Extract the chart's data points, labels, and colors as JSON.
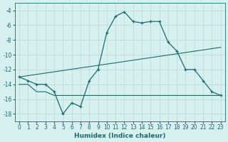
{
  "xlabel": "Humidex (Indice chaleur)",
  "bg_color": "#d6f0ef",
  "grid_color": "#b8d8d8",
  "line_color": "#1a6b6b",
  "xlim": [
    -0.5,
    23.5
  ],
  "ylim": [
    -19,
    -3
  ],
  "yticks": [
    -4,
    -6,
    -8,
    -10,
    -12,
    -14,
    -16,
    -18
  ],
  "xticks": [
    0,
    1,
    2,
    3,
    4,
    5,
    6,
    7,
    8,
    9,
    10,
    11,
    12,
    13,
    14,
    15,
    16,
    17,
    18,
    19,
    20,
    21,
    22,
    23
  ],
  "main_curve": {
    "x": [
      0,
      1,
      2,
      3,
      4,
      5,
      6,
      7,
      8,
      9,
      10,
      11,
      12,
      13,
      14,
      15,
      16,
      17,
      18,
      19,
      20,
      21,
      22,
      23
    ],
    "y": [
      -13,
      -13.5,
      -14,
      -14,
      -15,
      -18,
      -16.5,
      -17,
      -13.5,
      -12,
      -7,
      -4.8,
      -4.2,
      -5.5,
      -5.7,
      -5.5,
      -5.5,
      -8.3,
      -9.5,
      -12,
      -12,
      -13.5,
      -15,
      -15.5
    ]
  },
  "upper_trend": {
    "x": [
      0,
      23
    ],
    "y": [
      -13,
      -9.0
    ]
  },
  "lower_flat": {
    "x": [
      0,
      1,
      2,
      3,
      4,
      5,
      6,
      7,
      8,
      9,
      10,
      11,
      12,
      13,
      14,
      15,
      16,
      17,
      18,
      19,
      20,
      21,
      22,
      23
    ],
    "y": [
      -14,
      -14,
      -15,
      -15,
      -15.5,
      -15.5,
      -15.5,
      -15.5,
      -15.5,
      -15.5,
      -15.5,
      -15.5,
      -15.5,
      -15.5,
      -15.5,
      -15.5,
      -15.5,
      -15.5,
      -15.5,
      -15.5,
      -15.5,
      -15.5,
      -15.5,
      -15.5
    ]
  }
}
